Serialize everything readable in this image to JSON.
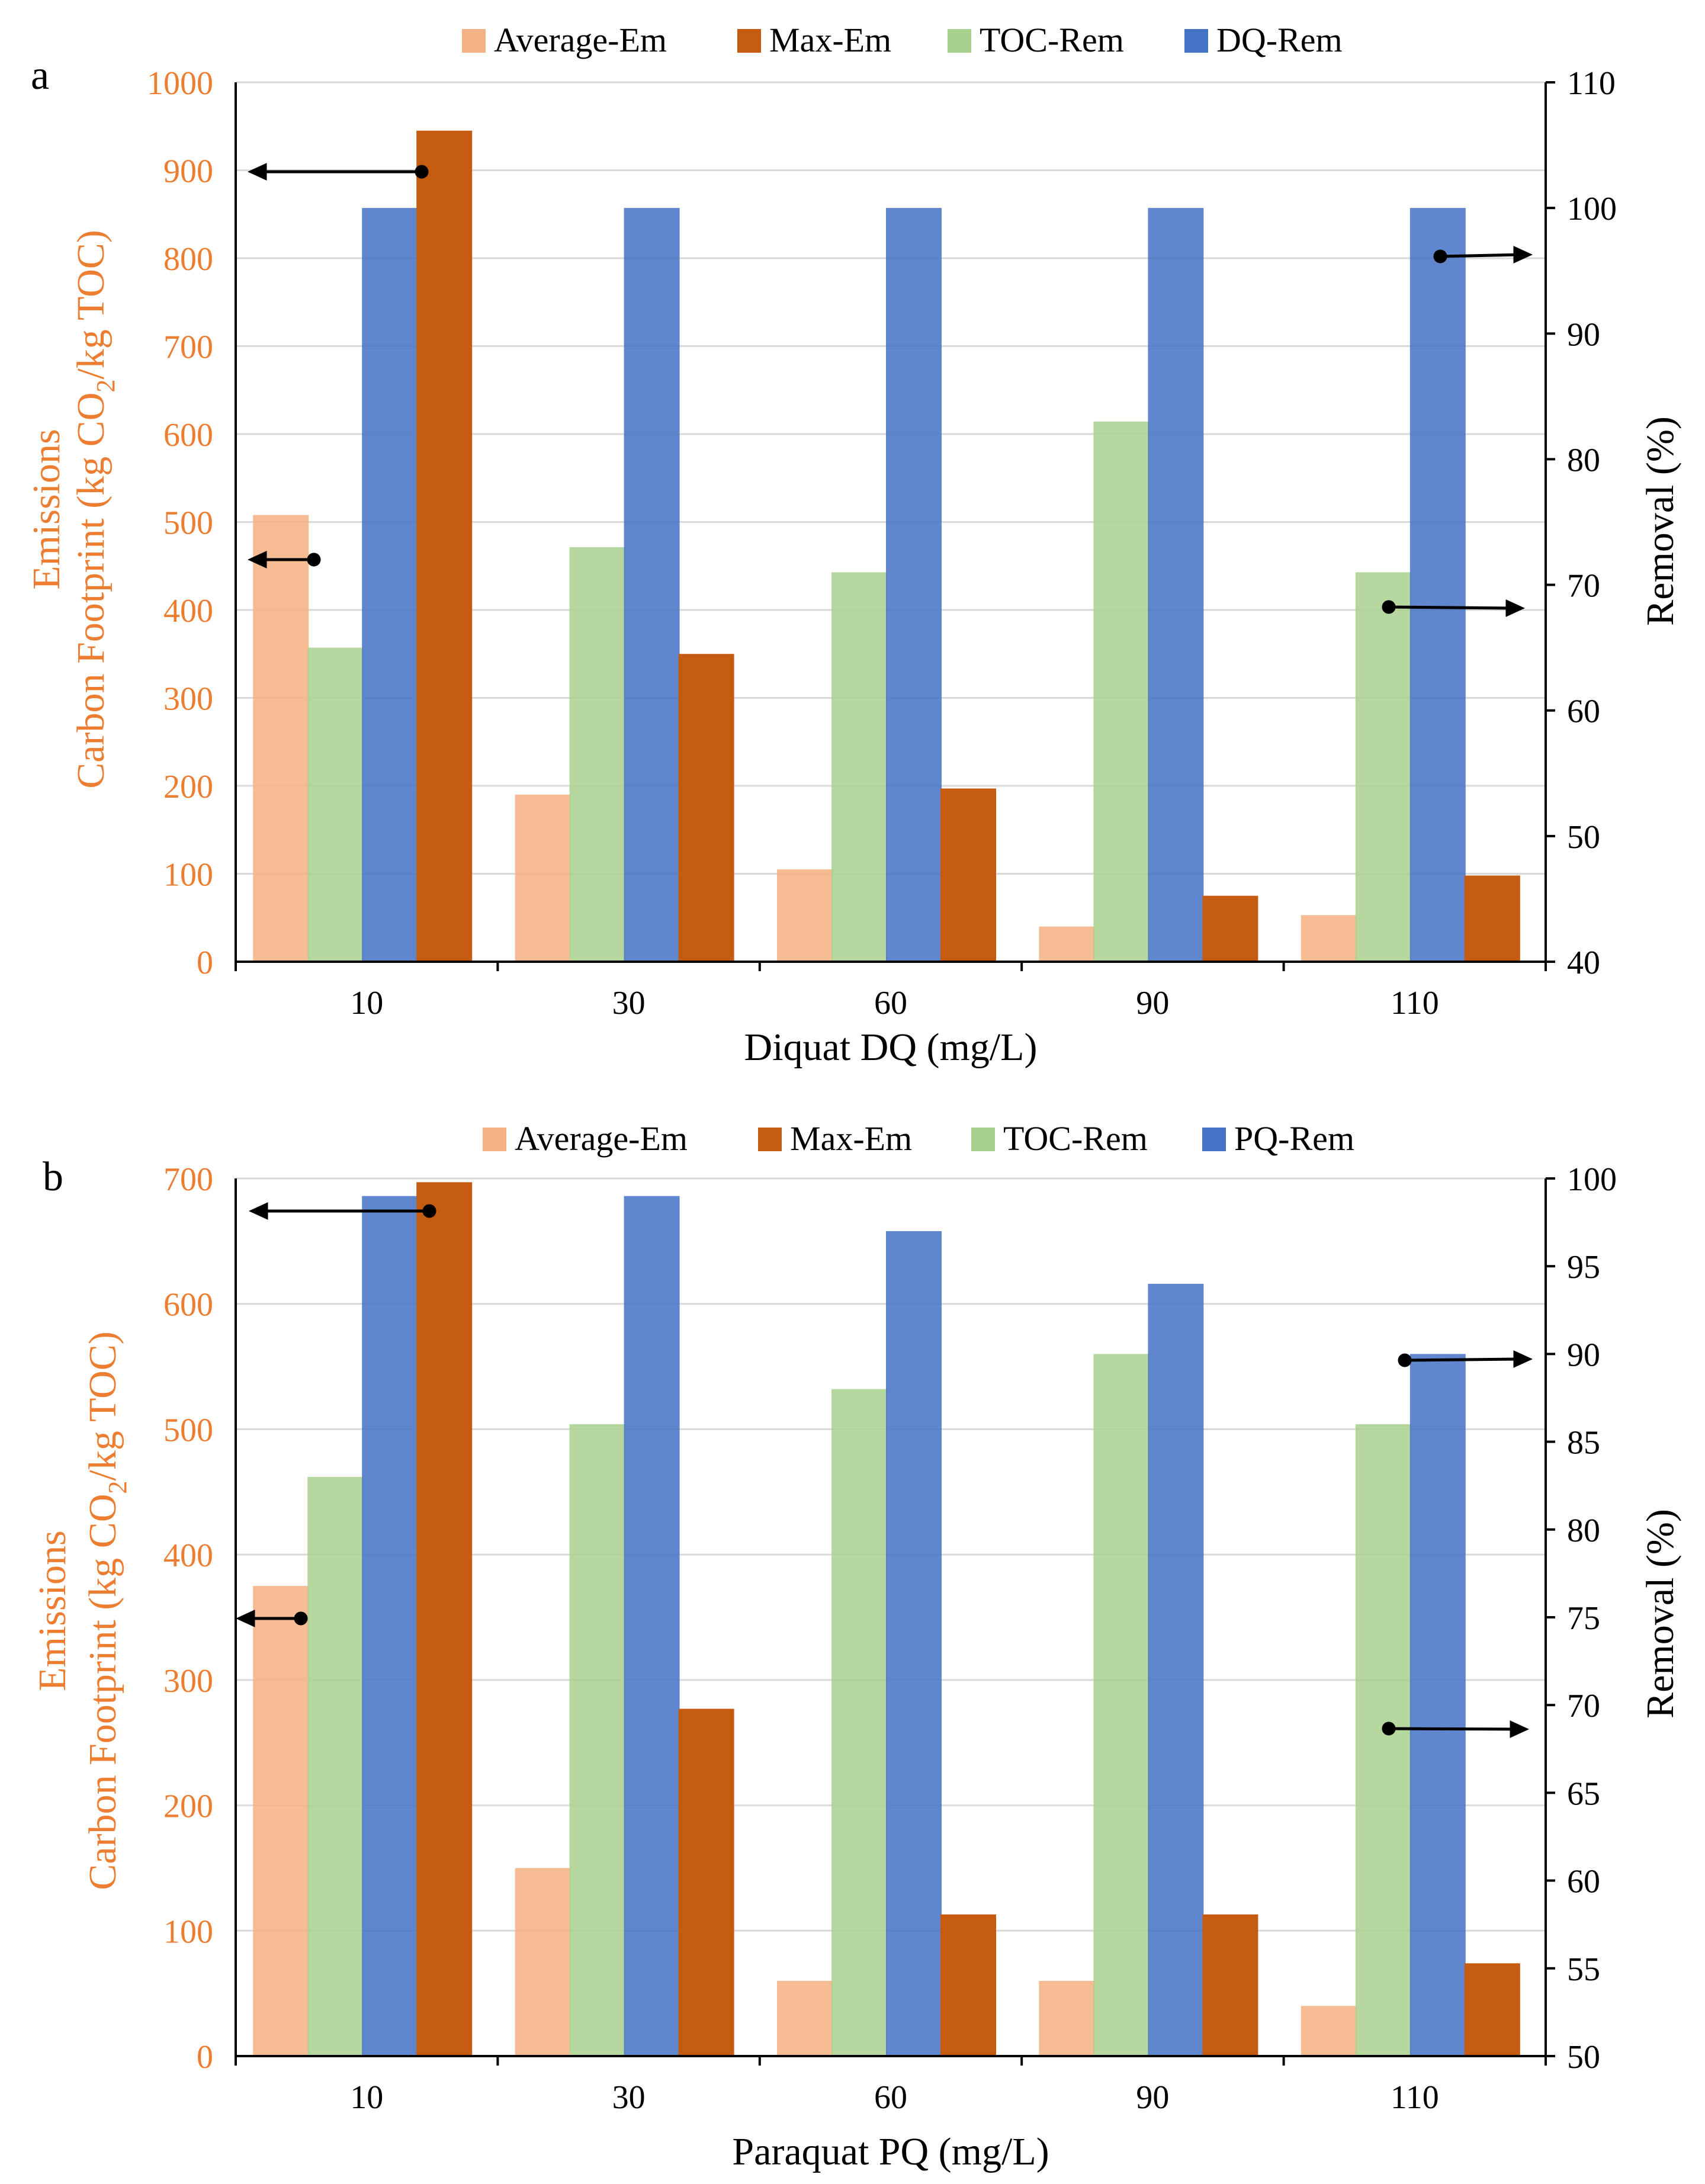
{
  "colors": {
    "average_em": "#f4b183",
    "max_em": "#c55a11",
    "toc_rem": "#a9d18e",
    "target_rem": "#4472c4",
    "left_axis": "#ed7d31",
    "right_axis": "#000000",
    "gridline": "#d9d9d9"
  },
  "chart_data": [
    {
      "type": "bar",
      "panel_label": "a",
      "categories": [
        "10",
        "30",
        "60",
        "90",
        "110"
      ],
      "xlabel": "Diquat DQ (mg/L)",
      "ylabel_line1": "Emissions",
      "ylabel_line2_pre": "Carbon Footprint (kg CO",
      "ylabel_line2_sub": "2",
      "ylabel_line2_post": "/kg TOC)",
      "ylim": [
        0,
        1000
      ],
      "yticks": [
        "0",
        "100",
        "200",
        "300",
        "400",
        "500",
        "600",
        "700",
        "800",
        "900",
        "1000"
      ],
      "y2label": "Removal (%)",
      "y2lim": [
        40,
        110
      ],
      "y2ticks": [
        "40",
        "50",
        "60",
        "70",
        "80",
        "90",
        "100",
        "110"
      ],
      "legend": [
        "Average-Em",
        "Max-Em",
        "TOC-Rem",
        "DQ-Rem"
      ],
      "series": [
        {
          "name": "Average-Em",
          "axis": "left",
          "values": [
            508,
            190,
            105,
            40,
            53
          ]
        },
        {
          "name": "TOC-Rem",
          "axis": "right",
          "values": [
            65,
            73,
            71,
            83,
            71
          ]
        },
        {
          "name": "DQ-Rem",
          "axis": "right",
          "values": [
            100,
            100,
            100,
            100,
            100
          ]
        },
        {
          "name": "Max-Em",
          "axis": "left",
          "values": [
            945,
            350,
            197,
            75,
            98
          ]
        }
      ]
    },
    {
      "type": "bar",
      "panel_label": "b",
      "categories": [
        "10",
        "30",
        "60",
        "90",
        "110"
      ],
      "xlabel": "Paraquat PQ (mg/L)",
      "ylabel_line1": "Emissions",
      "ylabel_line2_pre": "Carbon Footprint (kg CO",
      "ylabel_line2_sub": "2",
      "ylabel_line2_post": "/kg TOC)",
      "ylim": [
        0,
        700
      ],
      "yticks": [
        "0",
        "100",
        "200",
        "300",
        "400",
        "500",
        "600",
        "700"
      ],
      "y2label": "Removal (%)",
      "y2lim": [
        50,
        100
      ],
      "y2ticks": [
        "50",
        "55",
        "60",
        "65",
        "70",
        "75",
        "80",
        "85",
        "90",
        "95",
        "100"
      ],
      "legend": [
        "Average-Em",
        "Max-Em",
        "TOC-Rem",
        "PQ-Rem"
      ],
      "series": [
        {
          "name": "Average-Em",
          "axis": "left",
          "values": [
            375,
            150,
            60,
            60,
            40
          ]
        },
        {
          "name": "TOC-Rem",
          "axis": "right",
          "values": [
            83,
            86,
            88,
            90,
            86
          ]
        },
        {
          "name": "PQ-Rem",
          "axis": "right",
          "values": [
            99,
            99,
            97,
            94,
            90
          ]
        },
        {
          "name": "Max-Em",
          "axis": "left",
          "values": [
            697,
            277,
            113,
            113,
            74
          ]
        }
      ]
    }
  ]
}
